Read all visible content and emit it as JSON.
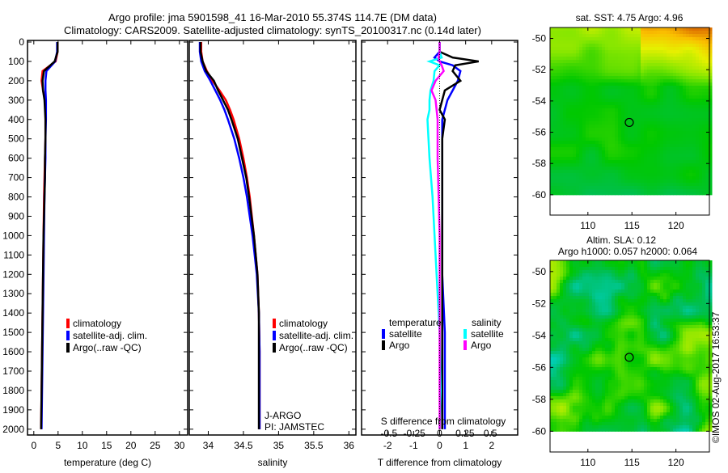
{
  "title_line1": "Argo profile: jma 5901598_41 16-Mar-2010 55.374S 114.7E (DM data)",
  "title_line2": "Climatology: CARS2009. Satellite-adjusted climatology: synTS_20100317.nc (0.14d later)",
  "colors": {
    "climatology": "#ff0000",
    "satellite": "#0000ff",
    "argo": "#000000",
    "sal_satellite": "#00ffff",
    "sal_argo": "#ff00ff"
  },
  "chart_data": [
    {
      "type": "line",
      "name": "temperature-profile",
      "xlabel": "temperature (deg C)",
      "ylabel": "",
      "xlim": [
        -1.3,
        31.7
      ],
      "ylim": [
        2030,
        0
      ],
      "xticks": [
        "0",
        "5",
        "10",
        "15",
        "20",
        "25",
        "30"
      ],
      "yticks": [
        "0",
        "100",
        "200",
        "300",
        "400",
        "500",
        "600",
        "700",
        "800",
        "900",
        "1000",
        "1100",
        "1200",
        "1300",
        "1400",
        "1500",
        "1600",
        "1700",
        "1800",
        "1900",
        "2000"
      ],
      "depth": [
        0,
        50,
        100,
        150,
        200,
        250,
        300,
        350,
        400,
        500,
        600,
        700,
        800,
        1000,
        1200,
        1400,
        1600,
        1800,
        2000
      ],
      "series": [
        {
          "name": "climatology",
          "values": [
            4.9,
            4.9,
            4.5,
            1.8,
            1.6,
            1.9,
            2.3,
            2.4,
            2.4,
            2.4,
            2.3,
            2.2,
            2.1,
            2.0,
            1.9,
            1.8,
            1.7,
            1.6,
            1.5
          ]
        },
        {
          "name": "satellite-adj. clim.",
          "values": [
            4.8,
            4.8,
            4.4,
            2.6,
            2.4,
            2.4,
            2.5,
            2.5,
            2.5,
            2.4,
            2.4,
            2.3,
            2.2,
            2.1,
            2.0,
            1.9,
            1.8,
            1.7,
            1.6
          ]
        },
        {
          "name": "Argo(..raw -QC)",
          "values": [
            4.9,
            4.9,
            4.3,
            2.1,
            1.8,
            1.9,
            2.2,
            2.3,
            2.4,
            2.4,
            2.3,
            2.3,
            2.2,
            2.0,
            1.9,
            1.8,
            1.7,
            1.6,
            1.5
          ]
        }
      ],
      "legend": [
        "climatology",
        "satellite-adj. clim.",
        "Argo(..raw -QC)"
      ]
    },
    {
      "type": "line",
      "name": "salinity-profile",
      "xlabel": "salinity",
      "xlim": [
        33.73,
        36.1
      ],
      "ylim": [
        2030,
        0
      ],
      "xticks": [
        "34",
        "34.5",
        "35",
        "35.5",
        "36"
      ],
      "depth": [
        0,
        50,
        100,
        150,
        200,
        250,
        300,
        350,
        400,
        500,
        600,
        700,
        800,
        1000,
        1200,
        1400,
        1600,
        1800,
        2000
      ],
      "series": [
        {
          "name": "climatology",
          "values": [
            33.9,
            33.9,
            33.92,
            33.98,
            34.06,
            34.16,
            34.25,
            34.31,
            34.36,
            34.44,
            34.5,
            34.55,
            34.59,
            34.65,
            34.7,
            34.72,
            34.73,
            34.73,
            34.73
          ]
        },
        {
          "name": "satellite-adj. clim.",
          "values": [
            33.88,
            33.88,
            33.9,
            33.95,
            34.03,
            34.1,
            34.17,
            34.23,
            34.28,
            34.37,
            34.44,
            34.5,
            34.55,
            34.63,
            34.69,
            34.72,
            34.73,
            34.73,
            34.73
          ]
        },
        {
          "name": "Argo(..raw -QC)",
          "values": [
            33.89,
            33.89,
            33.92,
            33.97,
            34.08,
            34.14,
            34.21,
            34.28,
            34.33,
            34.42,
            34.48,
            34.54,
            34.58,
            34.65,
            34.7,
            34.72,
            34.72,
            34.72,
            34.72
          ]
        }
      ],
      "legend": [
        "climatology",
        "satellite-adj. clim.",
        "Argo(..raw -QC)"
      ],
      "annotation": [
        "J-ARGO",
        "PI: JAMSTEC"
      ]
    },
    {
      "type": "line",
      "name": "difference-profile",
      "xlabel": "T difference from climatology",
      "x2label": "S difference from climatology",
      "xlim": [
        -3,
        3
      ],
      "x2lim": [
        -0.77,
        0.77
      ],
      "ylim": [
        2030,
        0
      ],
      "xticks": [
        "-2",
        "-1",
        "0",
        "1",
        "2"
      ],
      "x2ticks": [
        "-0.5",
        "-0.25",
        "0",
        "0.25",
        "0.5"
      ],
      "depth": [
        0,
        50,
        80,
        100,
        120,
        150,
        200,
        250,
        300,
        350,
        400,
        500,
        600,
        800,
        1000,
        1200,
        1500,
        1800,
        2000
      ],
      "series": [
        {
          "name": "temperature satellite",
          "var": "T",
          "values": [
            0,
            0,
            -0.2,
            0,
            0.5,
            0.8,
            0.7,
            0.5,
            0.3,
            0.2,
            0.1,
            0.1,
            0.1,
            0.1,
            0.1,
            0.1,
            0.2,
            0.2,
            0.2
          ]
        },
        {
          "name": "temperature Argo",
          "var": "T",
          "values": [
            0,
            0,
            0.5,
            1.5,
            0.6,
            0.5,
            0.8,
            0.2,
            0.1,
            0,
            0.2,
            0.1,
            0.1,
            0.1,
            0.1,
            0.1,
            0.1,
            0.1,
            0.1
          ]
        },
        {
          "name": "salinity satellite",
          "var": "S",
          "values": [
            0,
            0,
            0.02,
            -0.1,
            0,
            -0.05,
            -0.06,
            -0.09,
            -0.1,
            -0.1,
            -0.12,
            -0.11,
            -0.1,
            -0.07,
            -0.05,
            -0.03,
            0,
            0.01,
            0.0
          ]
        },
        {
          "name": "salinity Argo",
          "var": "S",
          "values": [
            0,
            0,
            -0.01,
            0,
            0.02,
            0.04,
            -0.04,
            -0.08,
            -0.04,
            -0.03,
            -0.02,
            -0.02,
            -0.02,
            -0.01,
            0,
            0,
            0,
            0,
            0
          ]
        }
      ],
      "legend": {
        "temperature_title": "temperature",
        "salinity_title": "salinity",
        "items": [
          "satellite",
          "Argo",
          "satellite",
          "Argo"
        ]
      }
    },
    {
      "type": "heatmap",
      "name": "sst-map",
      "title": "sat. SST: 4.75  Argo: 4.96",
      "xlim": [
        105.7,
        123.8
      ],
      "ylim": [
        -61.3,
        -49.3
      ],
      "xticks": [
        "110",
        "115",
        "120"
      ],
      "yticks": [
        "-50",
        "-52",
        "-54",
        "-56",
        "-58",
        "-60"
      ],
      "float_position": [
        114.7,
        -55.374
      ]
    },
    {
      "type": "heatmap",
      "name": "sla-map",
      "title": [
        "Altim. SLA: 0.12",
        "Argo h1000: 0.057 h2000: 0.064"
      ],
      "xlim": [
        105.7,
        123.8
      ],
      "ylim": [
        -61.3,
        -49.3
      ],
      "xticks": [
        "110",
        "115",
        "120"
      ],
      "yticks": [
        "-50",
        "-52",
        "-54",
        "-56",
        "-58",
        "-60"
      ],
      "float_position": [
        114.7,
        -55.374
      ]
    }
  ],
  "footer": "©IMOS 02-Aug-2017 16:53:37"
}
